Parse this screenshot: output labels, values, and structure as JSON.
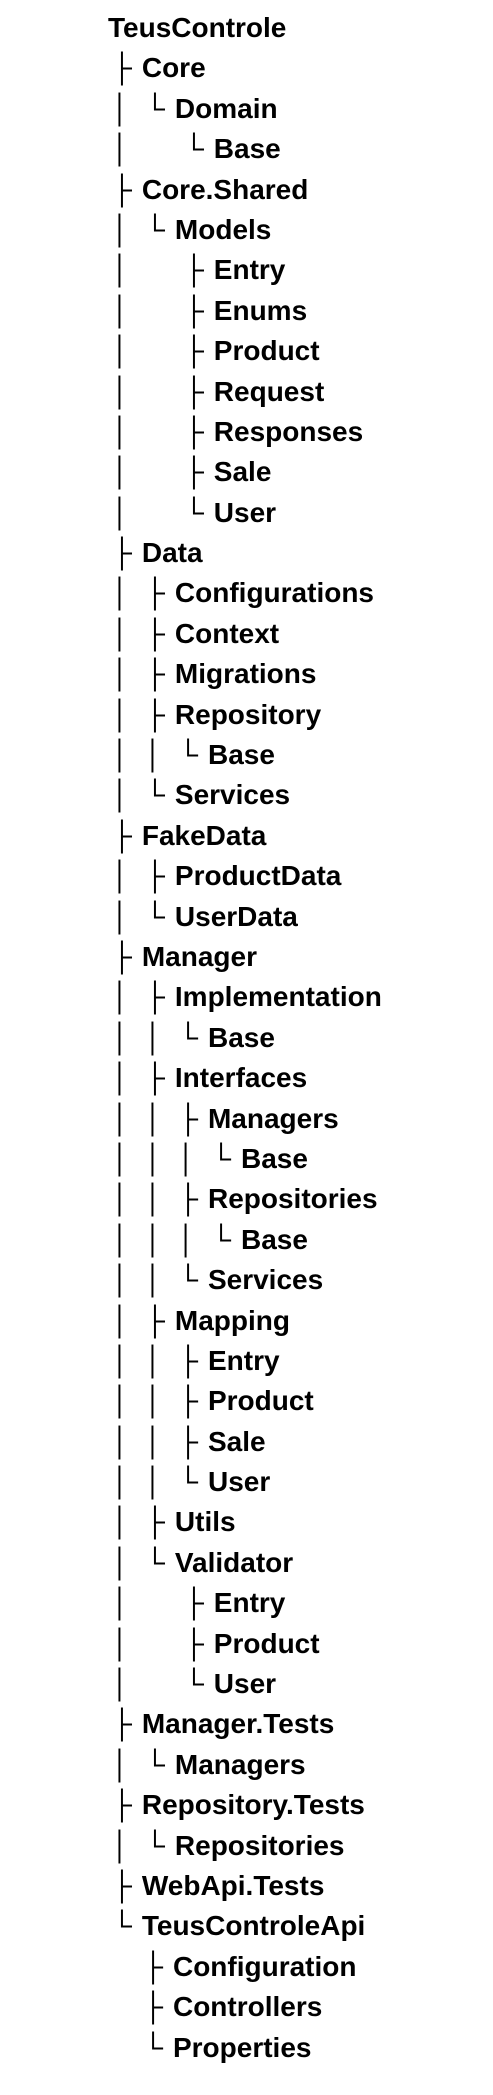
{
  "tree": [
    {
      "prefix": "",
      "name": "TeusControle",
      "depth": 0
    },
    {
      "prefix": "├",
      "name": "Core",
      "depth": 1
    },
    {
      "prefix": "│  └",
      "name": "Domain",
      "depth": 2
    },
    {
      "prefix": "│       └",
      "name": "Base",
      "depth": 3
    },
    {
      "prefix": "├",
      "name": "Core.Shared",
      "depth": 1
    },
    {
      "prefix": "│  └",
      "name": "Models",
      "depth": 2
    },
    {
      "prefix": "│       ├",
      "name": "Entry",
      "depth": 3
    },
    {
      "prefix": "│       ├",
      "name": "Enums",
      "depth": 3
    },
    {
      "prefix": "│       ├",
      "name": "Product",
      "depth": 3
    },
    {
      "prefix": "│       ├",
      "name": "Request",
      "depth": 3
    },
    {
      "prefix": "│       ├",
      "name": "Responses",
      "depth": 3
    },
    {
      "prefix": "│       ├",
      "name": "Sale",
      "depth": 3
    },
    {
      "prefix": "│       └",
      "name": "User",
      "depth": 3
    },
    {
      "prefix": "├",
      "name": "Data",
      "depth": 1
    },
    {
      "prefix": "│  ├",
      "name": "Configurations",
      "depth": 2
    },
    {
      "prefix": "│  ├",
      "name": "Context",
      "depth": 2
    },
    {
      "prefix": "│  ├",
      "name": "Migrations",
      "depth": 2
    },
    {
      "prefix": "│  ├",
      "name": "Repository",
      "depth": 2
    },
    {
      "prefix": "│  │  └",
      "name": "Base",
      "depth": 3
    },
    {
      "prefix": "│  └",
      "name": "Services",
      "depth": 2
    },
    {
      "prefix": "├",
      "name": "FakeData",
      "depth": 1
    },
    {
      "prefix": "│  ├",
      "name": "ProductData",
      "depth": 2
    },
    {
      "prefix": "│  └",
      "name": "UserData",
      "depth": 2
    },
    {
      "prefix": "├",
      "name": "Manager",
      "depth": 1
    },
    {
      "prefix": "│  ├",
      "name": "Implementation",
      "depth": 2
    },
    {
      "prefix": "│  │  └",
      "name": "Base",
      "depth": 3
    },
    {
      "prefix": "│  ├",
      "name": "Interfaces",
      "depth": 2
    },
    {
      "prefix": "│  │  ├",
      "name": "Managers",
      "depth": 3
    },
    {
      "prefix": "│  │  │  └",
      "name": "Base",
      "depth": 4
    },
    {
      "prefix": "│  │  ├",
      "name": "Repositories",
      "depth": 3
    },
    {
      "prefix": "│  │  │  └",
      "name": "Base",
      "depth": 4
    },
    {
      "prefix": "│  │  └",
      "name": "Services",
      "depth": 3
    },
    {
      "prefix": "│  ├",
      "name": "Mapping",
      "depth": 2
    },
    {
      "prefix": "│  │  ├",
      "name": "Entry",
      "depth": 3
    },
    {
      "prefix": "│  │  ├",
      "name": "Product",
      "depth": 3
    },
    {
      "prefix": "│  │  ├",
      "name": "Sale",
      "depth": 3
    },
    {
      "prefix": "│  │  └",
      "name": "User",
      "depth": 3
    },
    {
      "prefix": "│  ├",
      "name": "Utils",
      "depth": 2
    },
    {
      "prefix": "│  └",
      "name": "Validator",
      "depth": 2
    },
    {
      "prefix": "│       ├",
      "name": "Entry",
      "depth": 3
    },
    {
      "prefix": "│       ├",
      "name": "Product",
      "depth": 3
    },
    {
      "prefix": "│       └",
      "name": "User",
      "depth": 3
    },
    {
      "prefix": "├",
      "name": "Manager.Tests",
      "depth": 1
    },
    {
      "prefix": "│  └",
      "name": "Managers",
      "depth": 2
    },
    {
      "prefix": "├",
      "name": "Repository.Tests",
      "depth": 1
    },
    {
      "prefix": "│  └",
      "name": "Repositories",
      "depth": 2
    },
    {
      "prefix": "├",
      "name": "WebApi.Tests",
      "depth": 1
    },
    {
      "prefix": "└",
      "name": "TeusControleApi",
      "depth": 1
    },
    {
      "prefix": "    ├",
      "name": "Configuration",
      "depth": 2
    },
    {
      "prefix": "    ├",
      "name": "Controllers",
      "depth": 2
    },
    {
      "prefix": "    └",
      "name": "Properties",
      "depth": 2
    }
  ]
}
